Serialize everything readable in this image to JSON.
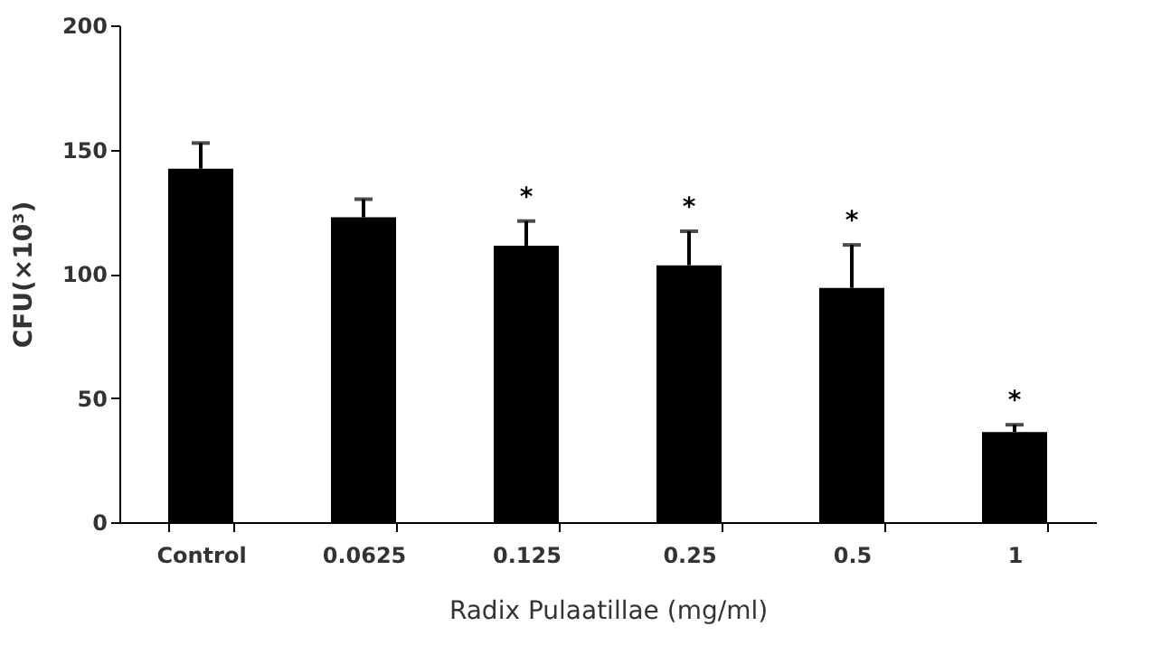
{
  "chart_data": {
    "type": "bar",
    "xlabel": "Radix Pulaatillae (mg/ml)",
    "ylabel": "CFU(×10³)",
    "categories": [
      "Control",
      "0.0625",
      "0.125",
      "0.25",
      "0.5",
      "1"
    ],
    "values": [
      142.3,
      122.7,
      111.3,
      103.4,
      94.3,
      36.3
    ],
    "errors": [
      [
        142.3,
        152.6
      ],
      [
        122.7,
        130
      ],
      [
        111.3,
        121.2
      ],
      [
        103.4,
        117.1
      ],
      [
        94.3,
        111.6
      ],
      [
        36.3,
        39.2
      ]
    ],
    "color": "#000000",
    "ylim": [
      0,
      200
    ],
    "yticks": [
      0,
      50,
      100,
      150,
      200
    ],
    "grid": false,
    "annotations": [
      "*",
      "*",
      "*",
      "*"
    ]
  }
}
